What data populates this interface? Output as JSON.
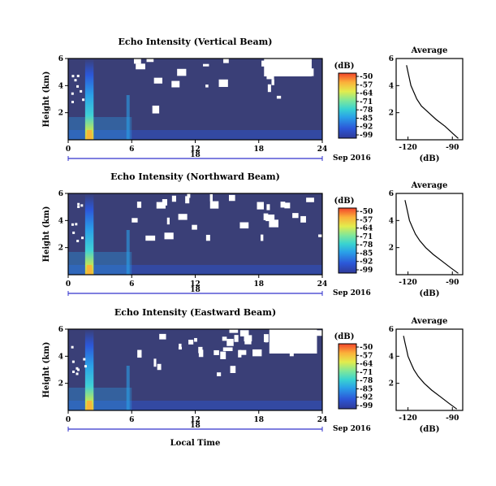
{
  "figure": {
    "date_label": "Sep 2016",
    "day_label": "18",
    "xlabel": "Local Time",
    "colorbar_unit": "(dB)"
  },
  "chart_data": [
    {
      "type": "heatmap",
      "title": "Echo Intensity (Vertical Beam)",
      "xlabel": "Local Time",
      "ylabel": "Height (km)",
      "x_ticks": [
        "0",
        "6",
        "12",
        "18",
        "24"
      ],
      "x_range_hours": [
        0,
        24
      ],
      "y_ticks": [
        "2",
        "4",
        "6"
      ],
      "y_range_km": [
        0,
        6
      ],
      "colorbar": {
        "label": "(dB)",
        "ticks": [
          "-50",
          "-57",
          "-64",
          "-71",
          "-78",
          "-85",
          "-92",
          "-99"
        ]
      },
      "missing_data": "white (no echo)",
      "strong_echo_hours": [
        1.6,
        2.4
      ],
      "average_profile": {
        "title": "Average",
        "xlabel": "(dB)",
        "x_ticks": [
          "-120",
          "-90"
        ],
        "xlim": [
          -128,
          -83
        ],
        "y_ticks": [
          "2",
          "4",
          "6"
        ],
        "ylim": [
          0,
          6
        ],
        "x": [
          -86,
          -90,
          -95,
          -101,
          -106,
          -111,
          -114,
          -116,
          -118,
          -119,
          -120,
          -121
        ],
        "y": [
          0.1,
          0.5,
          1.0,
          1.5,
          2.0,
          2.5,
          3.0,
          3.5,
          4.0,
          4.5,
          5.0,
          5.5
        ]
      }
    },
    {
      "type": "heatmap",
      "title": "Echo Intensity (Northward Beam)",
      "xlabel": "Local Time",
      "ylabel": "Height (km)",
      "x_ticks": [
        "0",
        "6",
        "12",
        "18",
        "24"
      ],
      "x_range_hours": [
        0,
        24
      ],
      "y_ticks": [
        "2",
        "4",
        "6"
      ],
      "y_range_km": [
        0,
        6
      ],
      "colorbar": {
        "label": "(dB)",
        "ticks": [
          "-50",
          "-57",
          "-64",
          "-71",
          "-78",
          "-85",
          "-92",
          "-99"
        ]
      },
      "missing_data": "white (no echo)",
      "strong_echo_hours": [
        1.6,
        2.4
      ],
      "average_profile": {
        "title": "Average",
        "xlabel": "(dB)",
        "x_ticks": [
          "-120",
          "-90"
        ],
        "xlim": [
          -128,
          -83
        ],
        "y_ticks": [
          "2",
          "4",
          "6"
        ],
        "ylim": [
          0,
          6
        ],
        "x": [
          -86,
          -91,
          -97,
          -103,
          -108,
          -112,
          -115,
          -117,
          -119,
          -120,
          -121,
          -122
        ],
        "y": [
          0.1,
          0.5,
          1.0,
          1.5,
          2.0,
          2.5,
          3.0,
          3.5,
          4.0,
          4.5,
          5.0,
          5.5
        ]
      }
    },
    {
      "type": "heatmap",
      "title": "Echo Intensity (Eastward Beam)",
      "xlabel": "Local Time",
      "ylabel": "Height (km)",
      "x_ticks": [
        "0",
        "6",
        "12",
        "18",
        "24"
      ],
      "x_range_hours": [
        0,
        24
      ],
      "y_ticks": [
        "2",
        "4",
        "6"
      ],
      "y_range_km": [
        0,
        6
      ],
      "colorbar": {
        "label": "(dB)",
        "ticks": [
          "-50",
          "-57",
          "-64",
          "-71",
          "-78",
          "-85",
          "-92",
          "-99"
        ]
      },
      "missing_data": "white (no echo)",
      "strong_echo_hours": [
        1.6,
        2.4
      ],
      "average_profile": {
        "title": "Average",
        "xlabel": "(dB)",
        "x_ticks": [
          "-120",
          "-90"
        ],
        "xlim": [
          -128,
          -83
        ],
        "y_ticks": [
          "2",
          "4",
          "6"
        ],
        "ylim": [
          0,
          6
        ],
        "x": [
          -87,
          -92,
          -98,
          -104,
          -109,
          -113,
          -116,
          -118,
          -120,
          -121,
          -122,
          -123
        ],
        "y": [
          0.1,
          0.5,
          1.0,
          1.5,
          2.0,
          2.5,
          3.0,
          3.5,
          4.0,
          4.5,
          5.0,
          5.5
        ]
      }
    }
  ],
  "colors": {
    "background_navy": "#3a3f77",
    "missing": "#ffffff",
    "colormap": [
      "#2f3a98",
      "#2c57d8",
      "#2aa0e8",
      "#39d3d1",
      "#7fe79a",
      "#e3ec4d",
      "#fbb03a",
      "#f2432a"
    ],
    "date_line": "#3333cc"
  }
}
